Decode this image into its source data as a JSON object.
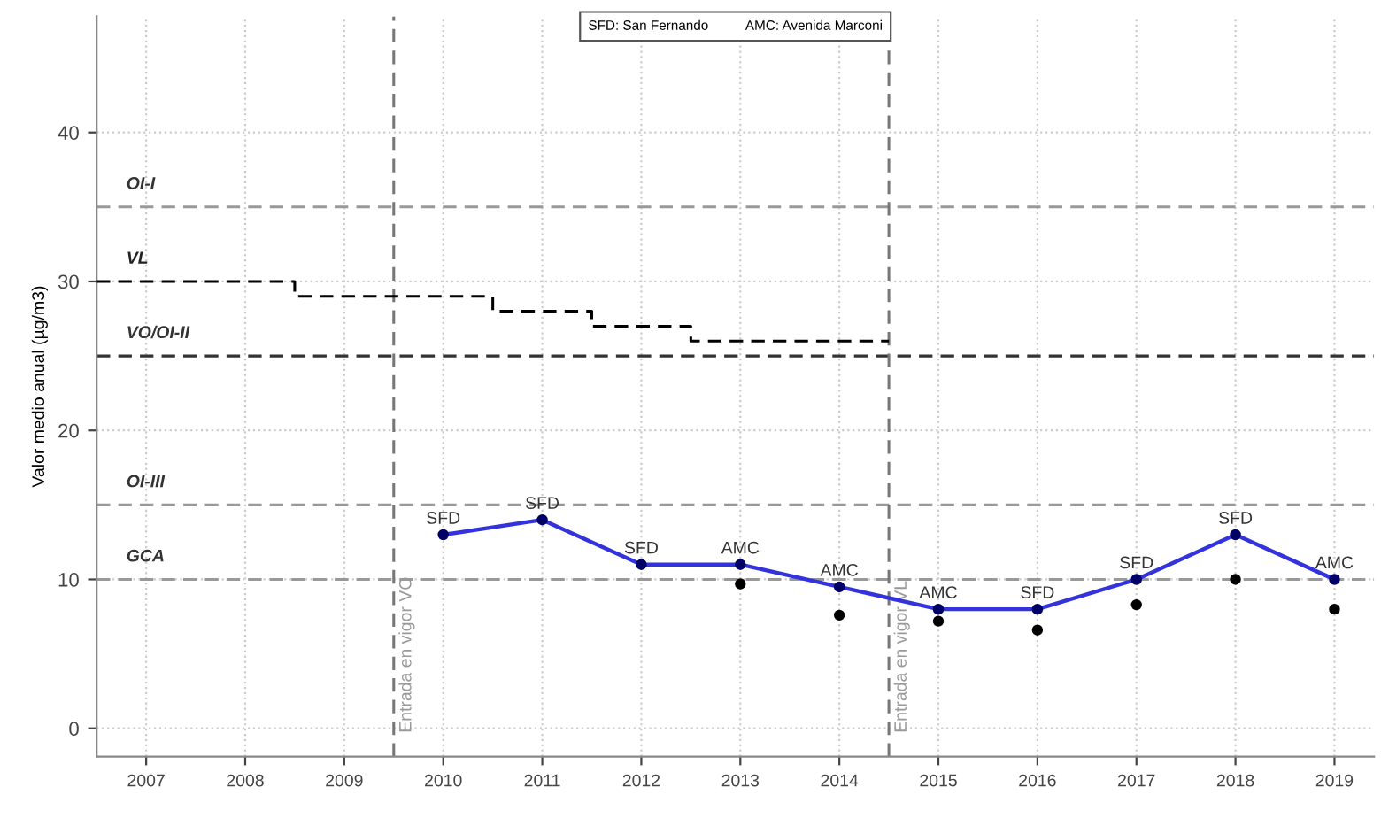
{
  "chart_data": {
    "type": "line",
    "ylabel": "Valor medio anual (µg/m3)",
    "xlim": [
      2006.5,
      2019.4
    ],
    "ylim": [
      -1.9,
      47.8
    ],
    "xticks": [
      2007,
      2008,
      2009,
      2010,
      2011,
      2012,
      2013,
      2014,
      2015,
      2016,
      2017,
      2018,
      2019
    ],
    "yticks": [
      0,
      10,
      20,
      30,
      40
    ],
    "grid": true,
    "series": [
      {
        "marker": "circle",
        "color": "#3333dd",
        "x": [
          2010,
          2011,
          2012,
          2013,
          2014,
          2015,
          2016,
          2017,
          2018,
          2019
        ],
        "values": [
          13,
          14,
          11,
          11,
          9.5,
          8,
          8,
          10,
          13,
          10
        ],
        "value_labels": [
          "SFD",
          "SFD",
          "SFD",
          "AMC",
          "AMC",
          "AMC",
          "SFD",
          "SFD",
          "SFD",
          "AMC"
        ]
      },
      {
        "type": "scatter",
        "marker": "circle",
        "color": "#000000",
        "x": [
          2013,
          2014,
          2015,
          2016,
          2017,
          2018,
          2019
        ],
        "values": [
          9.7,
          7.6,
          7.2,
          6.6,
          8.3,
          10,
          8.0
        ]
      },
      {
        "type": "step",
        "name": "VL",
        "color": "#000000",
        "line_style": "dashed",
        "x": [
          2006.5,
          2008.5,
          2010.5,
          2011.5,
          2012.5,
          2014.5
        ],
        "values": [
          30,
          29,
          28,
          27,
          26,
          26
        ]
      }
    ],
    "ref_lines": [
      {
        "axis": "y",
        "value": 35,
        "label": "OI-I",
        "color": "#999999",
        "line_style": "dashed"
      },
      {
        "axis": "y",
        "value": 25,
        "label": "VO/OI-II",
        "color": "#333333",
        "line_style": "dashed"
      },
      {
        "axis": "y",
        "value": 15,
        "label": "OI-III",
        "color": "#999999",
        "line_style": "dashed"
      },
      {
        "axis": "y",
        "value": 10,
        "label": "GCA",
        "color": "#999999",
        "line_style": "dashed"
      },
      {
        "axis": "x",
        "value": 2009.5,
        "label": "Entrada en vigor VO",
        "color": "#777777",
        "line_style": "dashed"
      },
      {
        "axis": "x",
        "value": 2014.5,
        "label": "Entrada en vigor VL",
        "color": "#777777",
        "line_style": "dashed"
      }
    ],
    "annotations": [
      "SFD: San Fernando",
      "AMC: Avenida Marconi"
    ]
  }
}
